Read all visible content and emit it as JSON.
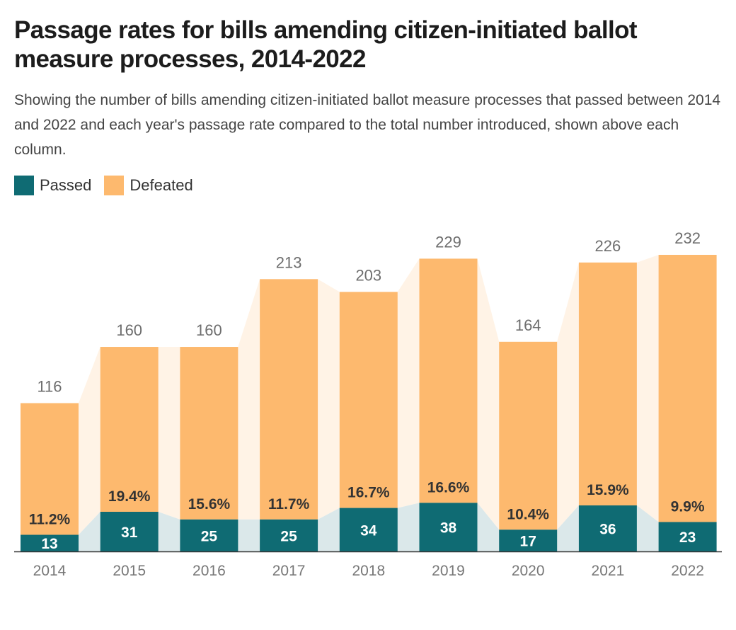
{
  "chart_data": {
    "type": "bar",
    "stacked": true,
    "title": "Passage rates for bills amending citizen-initiated ballot measure processes, 2014-2022",
    "subtitle": "Showing the number of bills amending citizen-initiated ballot measure processes that passed between 2014 and 2022 and each year's passage rate compared to the total number introduced, shown above each column.",
    "legend_position": "top-left",
    "grid": false,
    "categories": [
      "2014",
      "2015",
      "2016",
      "2017",
      "2018",
      "2019",
      "2020",
      "2021",
      "2022"
    ],
    "series": [
      {
        "name": "Passed",
        "color": "#0f6b73",
        "values": [
          13,
          31,
          25,
          25,
          34,
          38,
          17,
          36,
          23
        ]
      },
      {
        "name": "Defeated",
        "color": "#fdb96e",
        "values": [
          103,
          129,
          135,
          188,
          169,
          191,
          147,
          190,
          209
        ]
      }
    ],
    "totals": [
      116,
      160,
      160,
      213,
      203,
      229,
      164,
      226,
      232
    ],
    "passage_rates": [
      "11.2%",
      "19.4%",
      "15.6%",
      "11.7%",
      "16.7%",
      "16.6%",
      "10.4%",
      "15.9%",
      "9.9%"
    ],
    "ylim": [
      0,
      232
    ],
    "connector_colors": {
      "passed": "#dbe8ea",
      "defeated": "#fff3e6"
    }
  }
}
